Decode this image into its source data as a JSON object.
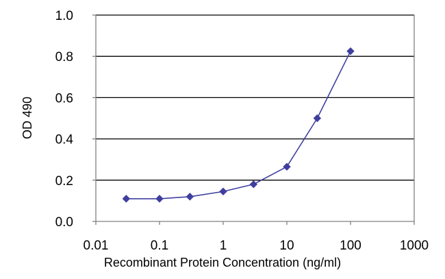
{
  "chart_data": {
    "type": "line",
    "xscale": "log",
    "xlabel": "Recombinant Protein Concentration (ng/ml)",
    "ylabel": "OD 490",
    "xlim": [
      0.01,
      1000
    ],
    "ylim": [
      0,
      1.0
    ],
    "x_ticks": [
      0.01,
      0.1,
      1,
      10,
      100,
      1000
    ],
    "x_tick_labels": [
      "0.01",
      "0.1",
      "1",
      "10",
      "100",
      "1000"
    ],
    "y_ticks": [
      0,
      0.2,
      0.4,
      0.6,
      0.8,
      1.0
    ],
    "y_tick_labels": [
      "0.0",
      "0.2",
      "0.4",
      "0.6",
      "0.8",
      "1.0"
    ],
    "grid": "horizontal",
    "legend": "none",
    "colors": {
      "series": "#3f3f9f",
      "grid": "#000000",
      "axis": "#808080",
      "plot_background": "#ffffff"
    },
    "series": [
      {
        "x": [
          0.03,
          0.1,
          0.3,
          1,
          3,
          10,
          30,
          100
        ],
        "y": [
          0.11,
          0.11,
          0.12,
          0.145,
          0.18,
          0.265,
          0.5,
          0.825
        ]
      }
    ]
  }
}
